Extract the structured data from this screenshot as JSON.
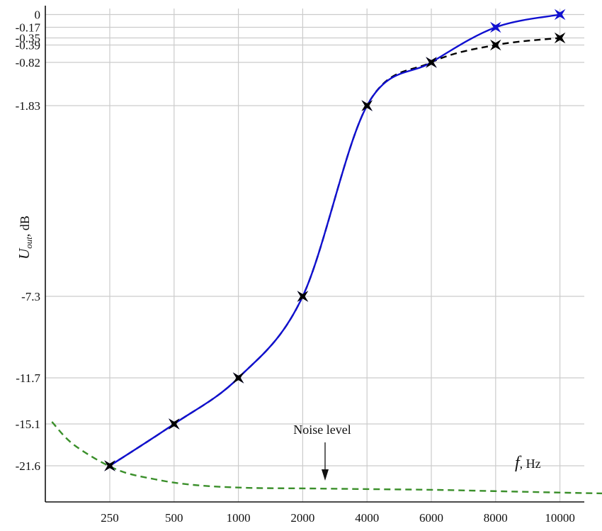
{
  "chart_data": {
    "type": "line",
    "title": "",
    "xlabel_var": "f",
    "xlabel_unit": ", Hz",
    "ylabel_var": "U",
    "ylabel_sub": "out",
    "ylabel_unit": ", dB",
    "grid": true,
    "x_scale": "categorical (equally spaced frequency ticks)",
    "categories": [
      "250",
      "500",
      "1000",
      "2000",
      "4000",
      "6000",
      "8000",
      "10000"
    ],
    "y_ticks": [
      "0",
      "-0.17",
      "-0.35",
      "-0.39",
      "-0.82",
      "-1.83",
      "-7.3",
      "-11.7",
      "-15.1",
      "-21.6"
    ],
    "series": [
      {
        "color": "#1010d0",
        "style": "solid",
        "marker": "star",
        "values": [
          -21.6,
          -15.1,
          -11.7,
          -7.3,
          -1.83,
          -0.82,
          -0.17,
          0
        ]
      },
      {
        "color": "#000000",
        "style": "dashed",
        "marker": "star",
        "values": [
          -21.6,
          -15.1,
          -11.7,
          -7.3,
          -1.83,
          -0.82,
          -0.39,
          -0.35
        ]
      },
      {
        "color": "#3a8f2a",
        "style": "dashed",
        "marker": "none",
        "points": [
          [
            0.0,
            595
          ],
          [
            0.35,
            628
          ],
          [
            1.0,
            662
          ],
          [
            1.6,
            676
          ],
          [
            2.2,
            684
          ],
          [
            3.0,
            688
          ],
          [
            4.0,
            689
          ],
          [
            5.0,
            690
          ],
          [
            6.0,
            691
          ],
          [
            7.0,
            693
          ],
          [
            8.0,
            695
          ],
          [
            8.6,
            696
          ]
        ]
      }
    ],
    "annotations": [
      {
        "text": "Noise level",
        "arrow_to_category_index": 3.35
      }
    ]
  }
}
